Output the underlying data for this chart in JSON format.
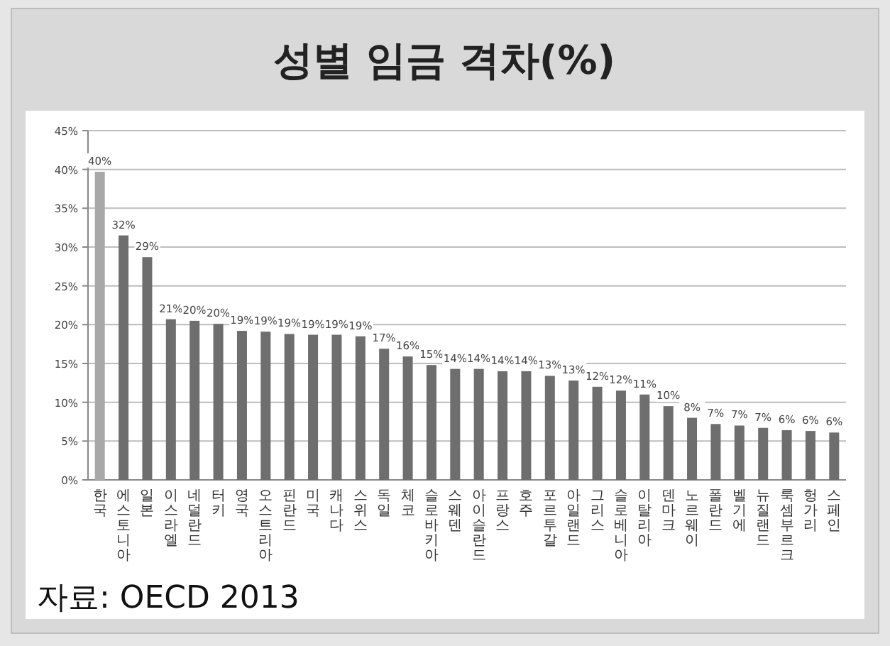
{
  "chart_data": {
    "type": "bar",
    "title": "성별 임금 격차(%)",
    "categories": [
      "한국",
      "에스토니아",
      "일본",
      "이스라엘",
      "네덜란드",
      "터키",
      "영국",
      "오스트리아",
      "핀란드",
      "미국",
      "캐나다",
      "스위스",
      "독일",
      "체코",
      "슬로바키아",
      "스웨덴",
      "아이슬란드",
      "프랑스",
      "호주",
      "포르투갈",
      "아일랜드",
      "그리스",
      "슬로베니아",
      "이탈리아",
      "덴마크",
      "노르웨이",
      "폴란드",
      "벨기에",
      "뉴질랜드",
      "룩셈부르크",
      "헝가리",
      "스페인"
    ],
    "values": [
      39.7,
      31.5,
      28.7,
      20.7,
      20.5,
      20.1,
      19.2,
      19.1,
      18.8,
      18.7,
      18.7,
      18.5,
      16.9,
      15.9,
      14.8,
      14.3,
      14.3,
      14.0,
      14.0,
      13.4,
      12.8,
      12.0,
      11.5,
      11.0,
      9.5,
      8.0,
      7.2,
      7.0,
      6.7,
      6.4,
      6.3,
      6.1
    ],
    "value_labels": [
      "40%",
      "32%",
      "29%",
      "21%",
      "20%",
      "20%",
      "19%",
      "19%",
      "19%",
      "19%",
      "19%",
      "19%",
      "17%",
      "16%",
      "15%",
      "14%",
      "14%",
      "14%",
      "14%",
      "13%",
      "13%",
      "12%",
      "12%",
      "11%",
      "10%",
      "8%",
      "7%",
      "7%",
      "7%",
      "6%",
      "6%",
      "6%"
    ],
    "colors": [
      "#a8a8a8",
      "#6e6e6e",
      "#6e6e6e",
      "#6e6e6e",
      "#6e6e6e",
      "#6e6e6e",
      "#6e6e6e",
      "#6e6e6e",
      "#6e6e6e",
      "#6e6e6e",
      "#6e6e6e",
      "#6e6e6e",
      "#6e6e6e",
      "#6e6e6e",
      "#6e6e6e",
      "#6e6e6e",
      "#6e6e6e",
      "#6e6e6e",
      "#6e6e6e",
      "#6e6e6e",
      "#6e6e6e",
      "#6e6e6e",
      "#6e6e6e",
      "#6e6e6e",
      "#6e6e6e",
      "#6e6e6e",
      "#6e6e6e",
      "#6e6e6e",
      "#6e6e6e",
      "#6e6e6e",
      "#6e6e6e",
      "#6e6e6e"
    ],
    "ylim": [
      0,
      45
    ],
    "yticks": [
      {
        "value": 0,
        "label": "0%"
      },
      {
        "value": 5,
        "label": "5%"
      },
      {
        "value": 10,
        "label": "10%"
      },
      {
        "value": 15,
        "label": "15%"
      },
      {
        "value": 20,
        "label": "20%"
      },
      {
        "value": 25,
        "label": "25%"
      },
      {
        "value": 30,
        "label": "30%"
      },
      {
        "value": 35,
        "label": "35%"
      },
      {
        "value": 40,
        "label": "40%"
      },
      {
        "value": 45,
        "label": "45%"
      }
    ],
    "grid": "y",
    "annotations": [
      "자료: OECD 2013"
    ]
  }
}
